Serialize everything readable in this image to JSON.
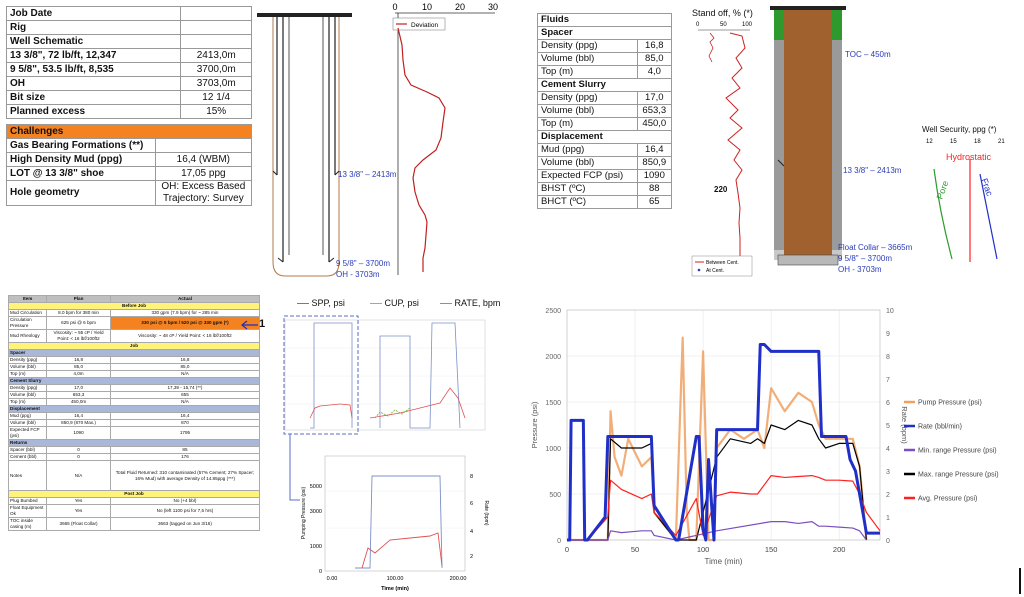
{
  "well_table": {
    "rows": [
      {
        "label": "Job Date",
        "value": ""
      },
      {
        "label": "Rig",
        "value": ""
      },
      {
        "label": "Well Schematic",
        "value": ""
      },
      {
        "label": "13 3/8\", 72 lb/ft, 12,347",
        "value": "2413,0m"
      },
      {
        "label": "9 5/8\", 53.5 lb/ft, 8,535",
        "value": "3700,0m"
      },
      {
        "label": "OH",
        "value": "3703,0m"
      },
      {
        "label": "Bit size",
        "value": "12 1/4"
      },
      {
        "label": "Planned excess",
        "value": "15%"
      }
    ]
  },
  "challenges": {
    "header": "Challenges",
    "rows": [
      {
        "label": "Gas Bearing Formations (**)",
        "value": ""
      },
      {
        "label": "High Density Mud (ppg)",
        "value": "16,4 (WBM)"
      },
      {
        "label": "LOT @ 13 3/8\" shoe",
        "value": "17,05 ppg"
      },
      {
        "label": "Hole geometry",
        "value": "OH: Excess Based",
        "value2": "Trajectory: Survey"
      }
    ]
  },
  "schematic_left": {
    "deviation_label": "Deviation",
    "x_ticks": [
      "0",
      "10",
      "20",
      "30"
    ],
    "shoe_133": "13 3/8\" – 2413m",
    "shoe_958": "9 5/8\" – 3700m",
    "oh": "OH - 3703m"
  },
  "fluids_table": {
    "rows": [
      {
        "label": "Fluids",
        "value": "",
        "bold": true
      },
      {
        "label": "Spacer",
        "value": "",
        "bold": true
      },
      {
        "label": "Density (ppg)",
        "value": "16,8"
      },
      {
        "label": "Volume (bbl)",
        "value": "85,0"
      },
      {
        "label": "Top (m)",
        "value": "4,0"
      },
      {
        "label": "Cement Slurry",
        "value": "",
        "bold": true
      },
      {
        "label": "Density (ppg)",
        "value": "17,0"
      },
      {
        "label": "Volume (bbl)",
        "value": "653,3"
      },
      {
        "label": "Top (m)",
        "value": "450,0"
      },
      {
        "label": "Displacement",
        "value": "",
        "bold": true
      },
      {
        "label": "Mud (ppg)",
        "value": "16,4"
      },
      {
        "label": "Volume (bbl)",
        "value": "850,9"
      },
      {
        "label": "Expected FCP (psi)",
        "value": "1090"
      },
      {
        "label": "BHST (ºC)",
        "value": "88"
      },
      {
        "label": "BHCT (ºC)",
        "value": "65"
      }
    ]
  },
  "standoff": {
    "title": "Stand off, % (*)",
    "ticks": [
      "0",
      "50",
      "100"
    ],
    "depth_label": "220",
    "legend": [
      "Between Cent.",
      "At Cent."
    ]
  },
  "schematic_right": {
    "toc": "TOC – 450m",
    "shoe_133": "13 3/8\" – 2413m",
    "float_collar": "Float Collar – 3665m",
    "shoe_958": "9 5/8\" – 3700m",
    "oh": "OH - 3703m"
  },
  "well_security": {
    "title": "Well Security, ppg (*)",
    "ticks": [
      "12",
      "15",
      "18",
      "21"
    ],
    "hydrostatic": "Hydrostatic",
    "pore": "Pore",
    "frac": "Frac"
  },
  "job_table": {
    "headers": [
      "Item",
      "Plan",
      "Actual"
    ],
    "before_job": "Before Job",
    "job": "Job",
    "post_job": "Post Job",
    "returns": "Returns",
    "rows_before": [
      [
        "Mud Circulation",
        "8.0 bpm for 380 min",
        "330 gpm (7.9 bpm) for ~ 285 min"
      ],
      [
        "Circulation Pressure",
        "625 psi @ 6 bpm",
        "330 psi @ 5 bpm / 520 psi @ 330 gpm (*)"
      ],
      [
        "Mud Rheology",
        "Viscosity: ~ 55 cP / Yield Point: < 16 lbf/100ft2",
        "Viscosity: ~ 48 cP / Yield Point: < 16 lbf/100ft2"
      ]
    ],
    "marker": "1",
    "spacer_label": "Spacer",
    "rows_spacer": [
      [
        "Density (ppg)",
        "16,8",
        "16,8"
      ],
      [
        "Volume (bbl)",
        "85,0",
        "85,0"
      ],
      [
        "Top (m)",
        "4,0m",
        "N/A"
      ]
    ],
    "slurry_label": "Cement Slurry",
    "rows_slurry": [
      [
        "Density (ppg)",
        "17,0",
        "17,39 - 15,74 (**)"
      ],
      [
        "Volume (bbl)",
        "653,3",
        "655"
      ],
      [
        "Top (m)",
        "450,0m",
        "N/A"
      ]
    ],
    "displacement_label": "Displacement",
    "rows_displacement": [
      [
        "Mud (ppg)",
        "16,4",
        "16,4"
      ],
      [
        "Volume (bbl)",
        "850,9 (870 Max.)",
        "870"
      ],
      [
        "Expected FCP (psi)",
        "1090",
        "1795"
      ]
    ],
    "rows_returns": [
      [
        "Spacer (bbl)",
        "0",
        "85"
      ],
      [
        "Cement (bbl)",
        "0",
        "176"
      ],
      [
        "Notes",
        "N/A",
        "Total Fluid Returned: 310 contaminated (57% Cement; 27% Spacer; 16% Mud) with average Density of 14.85ppg (***)"
      ]
    ],
    "rows_post": [
      [
        "Plug Bumbed",
        "Yes",
        "No (+4 bbl)"
      ],
      [
        "Float Equipment Ok",
        "Yes",
        "No (left 1100 psi for 7,5 hrs)"
      ],
      [
        "TOC inside casing (m)",
        "3665 (Float Collar)",
        "3663 (tagged on Jun 3/16)"
      ]
    ]
  },
  "job_chart": {
    "legend": [
      "SPP, psi",
      "CUP, psi",
      "RATE, bpm"
    ],
    "legend_colors": [
      "#e05050",
      "#c8a060",
      "#7b90c8"
    ],
    "zoom_xlabel": "Time (min)",
    "zoom_ylabel": "Pumping Pressure (psi)",
    "zoom_y2label": "Rate (bpm)",
    "zoom_x_ticks": [
      "0.00",
      "100.00",
      "200.00"
    ],
    "zoom_y_ticks": [
      "0",
      "1000",
      "3000",
      "5000"
    ],
    "zoom_y2_ticks": [
      "2",
      "4",
      "6",
      "8"
    ]
  },
  "chart_data": {
    "type": "line",
    "xlabel": "Time (min)",
    "ylabel": "Pressure (psi)",
    "y2label": "Rate (bpm)",
    "xlim": [
      0,
      230
    ],
    "ylim": [
      0,
      2500
    ],
    "y2lim": [
      0,
      10
    ],
    "x_ticks": [
      "0",
      "50",
      "100",
      "150",
      "200"
    ],
    "y_ticks": [
      "0",
      "500",
      "1000",
      "1500",
      "2000",
      "2500"
    ],
    "y2_ticks": [
      "0",
      "1",
      "2",
      "3",
      "4",
      "5",
      "6",
      "7",
      "8",
      "9",
      "10"
    ],
    "legend": [
      {
        "name": "Pump Pressure (psi)",
        "color": "#f0a060"
      },
      {
        "name": "Rate (bbl/min)",
        "color": "#1f2fc8"
      },
      {
        "name": "Min. range Pressure (psi)",
        "color": "#7a4fc0"
      },
      {
        "name": "Max. range Pressure (psi)",
        "color": "#000000"
      },
      {
        "name": "Avg. Pressure (psi)",
        "color": "#ff2020"
      }
    ],
    "series": [
      {
        "name": "Rate (bbl/min)",
        "x": [
          0,
          2,
          3,
          12,
          13,
          15,
          28,
          30,
          32,
          62,
          64,
          80,
          82,
          95,
          97,
          100,
          102,
          104,
          108,
          110,
          112,
          115,
          140,
          142,
          145,
          150,
          152,
          185,
          187,
          190,
          205,
          208,
          212,
          215,
          218,
          220,
          230
        ],
        "y": [
          0,
          0,
          5.2,
          5.2,
          0,
          0,
          1,
          4.5,
          4.5,
          4.5,
          1.5,
          0,
          0,
          4.5,
          4.5,
          0.5,
          0,
          3.5,
          0,
          4.8,
          4.8,
          4.8,
          4.8,
          8.5,
          8.5,
          8.2,
          8.2,
          8.2,
          4.5,
          4.5,
          4.5,
          3.5,
          3,
          2,
          1,
          0.3,
          0.3
        ]
      },
      {
        "name": "Avg. Pressure (psi)",
        "x": [
          0,
          5,
          15,
          30,
          32,
          40,
          55,
          62,
          64,
          80,
          95,
          100,
          110,
          120,
          135,
          140,
          145,
          150,
          160,
          170,
          180,
          185,
          190,
          200,
          210,
          215,
          220,
          230
        ],
        "y": [
          0,
          0,
          0,
          250,
          650,
          550,
          450,
          500,
          300,
          50,
          450,
          50,
          480,
          520,
          500,
          500,
          600,
          700,
          680,
          690,
          700,
          680,
          650,
          650,
          640,
          500,
          300,
          100
        ]
      },
      {
        "name": "Max. range Pressure (psi)",
        "x": [
          0,
          30,
          32,
          40,
          55,
          62,
          64,
          80,
          95,
          110,
          120,
          135,
          140,
          145,
          150,
          160,
          170,
          180,
          185,
          190,
          200,
          210,
          215,
          220
        ],
        "y": [
          0,
          0,
          1100,
          1000,
          1000,
          1050,
          300,
          0,
          0,
          900,
          1100,
          1050,
          1100,
          1050,
          1250,
          1200,
          1300,
          1250,
          1100,
          1000,
          1050,
          1050,
          800,
          0
        ]
      },
      {
        "name": "Min. range Pressure (psi)",
        "x": [
          0,
          30,
          32,
          40,
          55,
          62,
          64,
          80,
          110,
          150,
          160,
          170,
          180,
          185,
          190,
          200,
          210,
          215,
          220
        ],
        "y": [
          0,
          0,
          100,
          80,
          100,
          100,
          50,
          0,
          100,
          200,
          200,
          180,
          200,
          150,
          150,
          140,
          130,
          100,
          0
        ]
      },
      {
        "name": "Pump Pressure (psi)",
        "x": [
          0,
          30,
          32,
          35,
          40,
          45,
          55,
          62,
          64,
          80,
          85,
          88,
          90,
          95,
          100,
          104,
          108,
          110,
          120,
          130,
          140,
          145,
          150,
          160,
          170,
          180,
          185,
          190,
          200,
          210,
          215,
          220
        ],
        "y": [
          0,
          0,
          1400,
          900,
          700,
          1100,
          800,
          900,
          300,
          0,
          2200,
          300,
          0,
          0,
          2050,
          0,
          0,
          1000,
          1200,
          1100,
          1200,
          1000,
          1650,
          1400,
          1600,
          1500,
          1250,
          1100,
          1100,
          1100,
          800,
          0
        ]
      }
    ]
  }
}
